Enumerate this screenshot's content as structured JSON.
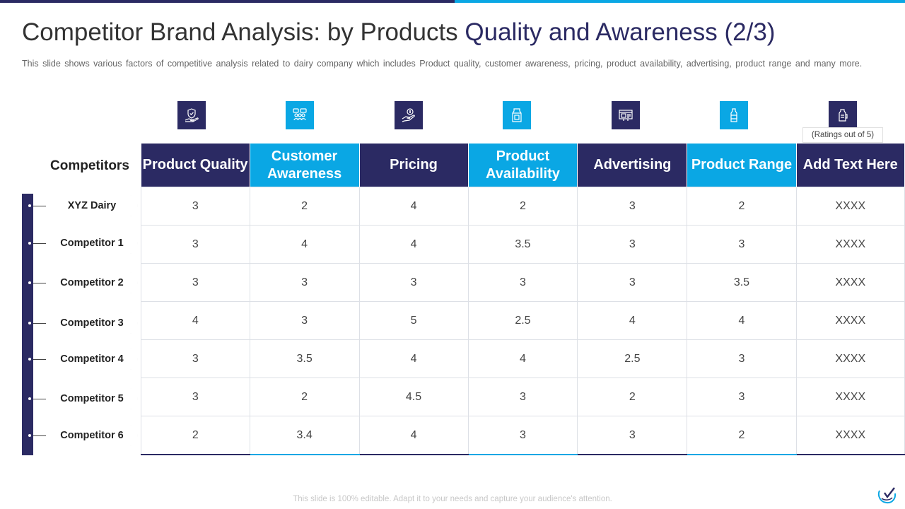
{
  "title_main": "Competitor Brand Analysis: by Products",
  "title_highlight": "Quality and Awareness (2/3)",
  "subtitle": "This slide shows various factors of competitive analysis related to dairy company which includes Product quality, customer awareness, pricing, product availability, advertising, product range and many more.",
  "ratings_note": "(Ratings out of 5)",
  "competitors_label": "Competitors",
  "icons": [
    "quality-shield-hand-icon",
    "customer-group-icon",
    "pricing-dollar-hand-icon",
    "milk-carton-icon",
    "advertising-billboard-icon",
    "milk-bottle-icon",
    "milk-jug-icon"
  ],
  "colors": {
    "dark": "#2b2a63",
    "light": "#0aa7e4"
  },
  "headers": [
    "Product Quality",
    "Customer Awareness",
    "Pricing",
    "Product Availability",
    "Advertising",
    "Product Range",
    "Add Text Here"
  ],
  "rows": [
    {
      "name": "XYZ Dairy",
      "values": [
        "3",
        "2",
        "4",
        "2",
        "3",
        "2",
        "XXXX"
      ]
    },
    {
      "name": "Competitor 1",
      "values": [
        "3",
        "4",
        "4",
        "3.5",
        "3",
        "3",
        "XXXX"
      ]
    },
    {
      "name": "Competitor 2",
      "values": [
        "3",
        "3",
        "3",
        "3",
        "3",
        "3.5",
        "XXXX"
      ]
    },
    {
      "name": "Competitor 3",
      "values": [
        "4",
        "3",
        "5",
        "2.5",
        "4",
        "4",
        "XXXX"
      ]
    },
    {
      "name": "Competitor 4",
      "values": [
        "3",
        "3.5",
        "4",
        "4",
        "2.5",
        "3",
        "XXXX"
      ]
    },
    {
      "name": "Competitor 5",
      "values": [
        "3",
        "2",
        "4.5",
        "3",
        "2",
        "3",
        "XXXX"
      ]
    },
    {
      "name": "Competitor 6",
      "values": [
        "2",
        "3.4",
        "4",
        "3",
        "3",
        "2",
        "XXXX"
      ]
    }
  ],
  "footer": "This slide is 100% editable. Adapt it to your needs and capture your audience's attention."
}
